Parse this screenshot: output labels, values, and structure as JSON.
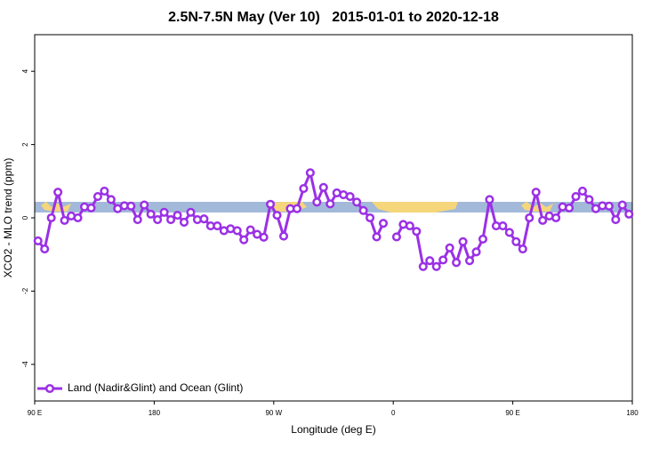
{
  "chart_data": {
    "type": "line",
    "title": "2.5N-7.5N May (Ver 10)   2015-01-01 to 2020-12-18",
    "xlabel": "Longitude (deg E)",
    "ylabel": "XCO2 - MLO trend (ppm)",
    "xlim": [
      90,
      540
    ],
    "ylim": [
      -5,
      5
    ],
    "xticks": [
      {
        "value": 90,
        "label": "90 E"
      },
      180,
      {
        "value": 270,
        "label": "90 W"
      },
      {
        "value": 360,
        "label": "0"
      },
      {
        "value": 450,
        "label": "90 E"
      },
      {
        "value": 540,
        "label": "180"
      }
    ],
    "yticks": [
      -4,
      -2,
      0,
      2,
      4
    ],
    "legend_position": "bottom-left",
    "x": [
      92.5,
      97.5,
      102.5,
      107.5,
      112.5,
      117.5,
      122.5,
      127.5,
      132.5,
      137.5,
      142.5,
      147.5,
      152.5,
      157.5,
      162.5,
      167.5,
      172.5,
      177.5,
      182.5,
      187.5,
      192.5,
      197.5,
      202.5,
      207.5,
      212.5,
      217.5,
      222.5,
      227.5,
      232.5,
      237.5,
      242.5,
      247.5,
      252.5,
      257.5,
      262.5,
      267.5,
      272.5,
      277.5,
      282.5,
      287.5,
      292.5,
      297.5,
      302.5,
      307.5,
      312.5,
      317.5,
      322.5,
      327.5,
      332.5,
      337.5,
      342.5,
      347.5,
      352.5,
      357.5,
      362.5,
      367.5,
      372.5,
      377.5,
      382.5,
      387.5,
      392.5,
      397.5,
      402.5,
      407.5,
      412.5,
      417.5,
      422.5,
      427.5,
      432.5,
      437.5,
      442.5,
      447.5,
      452.5,
      457.5,
      462.5,
      467.5,
      472.5,
      477.5,
      482.5,
      487.5,
      492.5,
      497.5,
      502.5,
      507.5,
      512.5,
      517.5,
      522.5,
      527.5,
      532.5,
      537.5
    ],
    "series": [
      {
        "name": "Land (Nadir&Glint) and Ocean (Glint)",
        "color": "#9b30e6",
        "values": [
          -0.63,
          -0.85,
          0,
          0.7,
          -0.07,
          0.05,
          0,
          0.3,
          0.27,
          0.58,
          0.73,
          0.5,
          0.25,
          0.33,
          0.32,
          -0.05,
          0.35,
          0.1,
          -0.05,
          0.15,
          -0.05,
          0.07,
          -0.12,
          0.15,
          -0.05,
          -0.03,
          -0.22,
          -0.22,
          -0.35,
          -0.3,
          -0.35,
          -0.6,
          -0.33,
          -0.45,
          -0.53,
          0.37,
          0.07,
          -0.5,
          0.25,
          0.25,
          0.8,
          1.23,
          0.43,
          0.83,
          0.38,
          0.68,
          0.63,
          0.58,
          0.43,
          0.2,
          0,
          -0.52,
          -0.15,
          null,
          -0.52,
          -0.18,
          -0.22,
          -0.37,
          -1.33,
          -1.17,
          -1.33,
          -1.15,
          -0.82,
          -1.22,
          -0.65,
          -1.17,
          -0.93,
          -0.58,
          0.5,
          -0.22,
          -0.22,
          -0.4,
          -0.65,
          -0.85,
          0,
          0.7,
          -0.07,
          0.05,
          0,
          0.3,
          0.27,
          0.58,
          0.73,
          0.5,
          0.25,
          0.33,
          0.32,
          -0.05,
          0.35,
          0.1
        ]
      }
    ]
  }
}
